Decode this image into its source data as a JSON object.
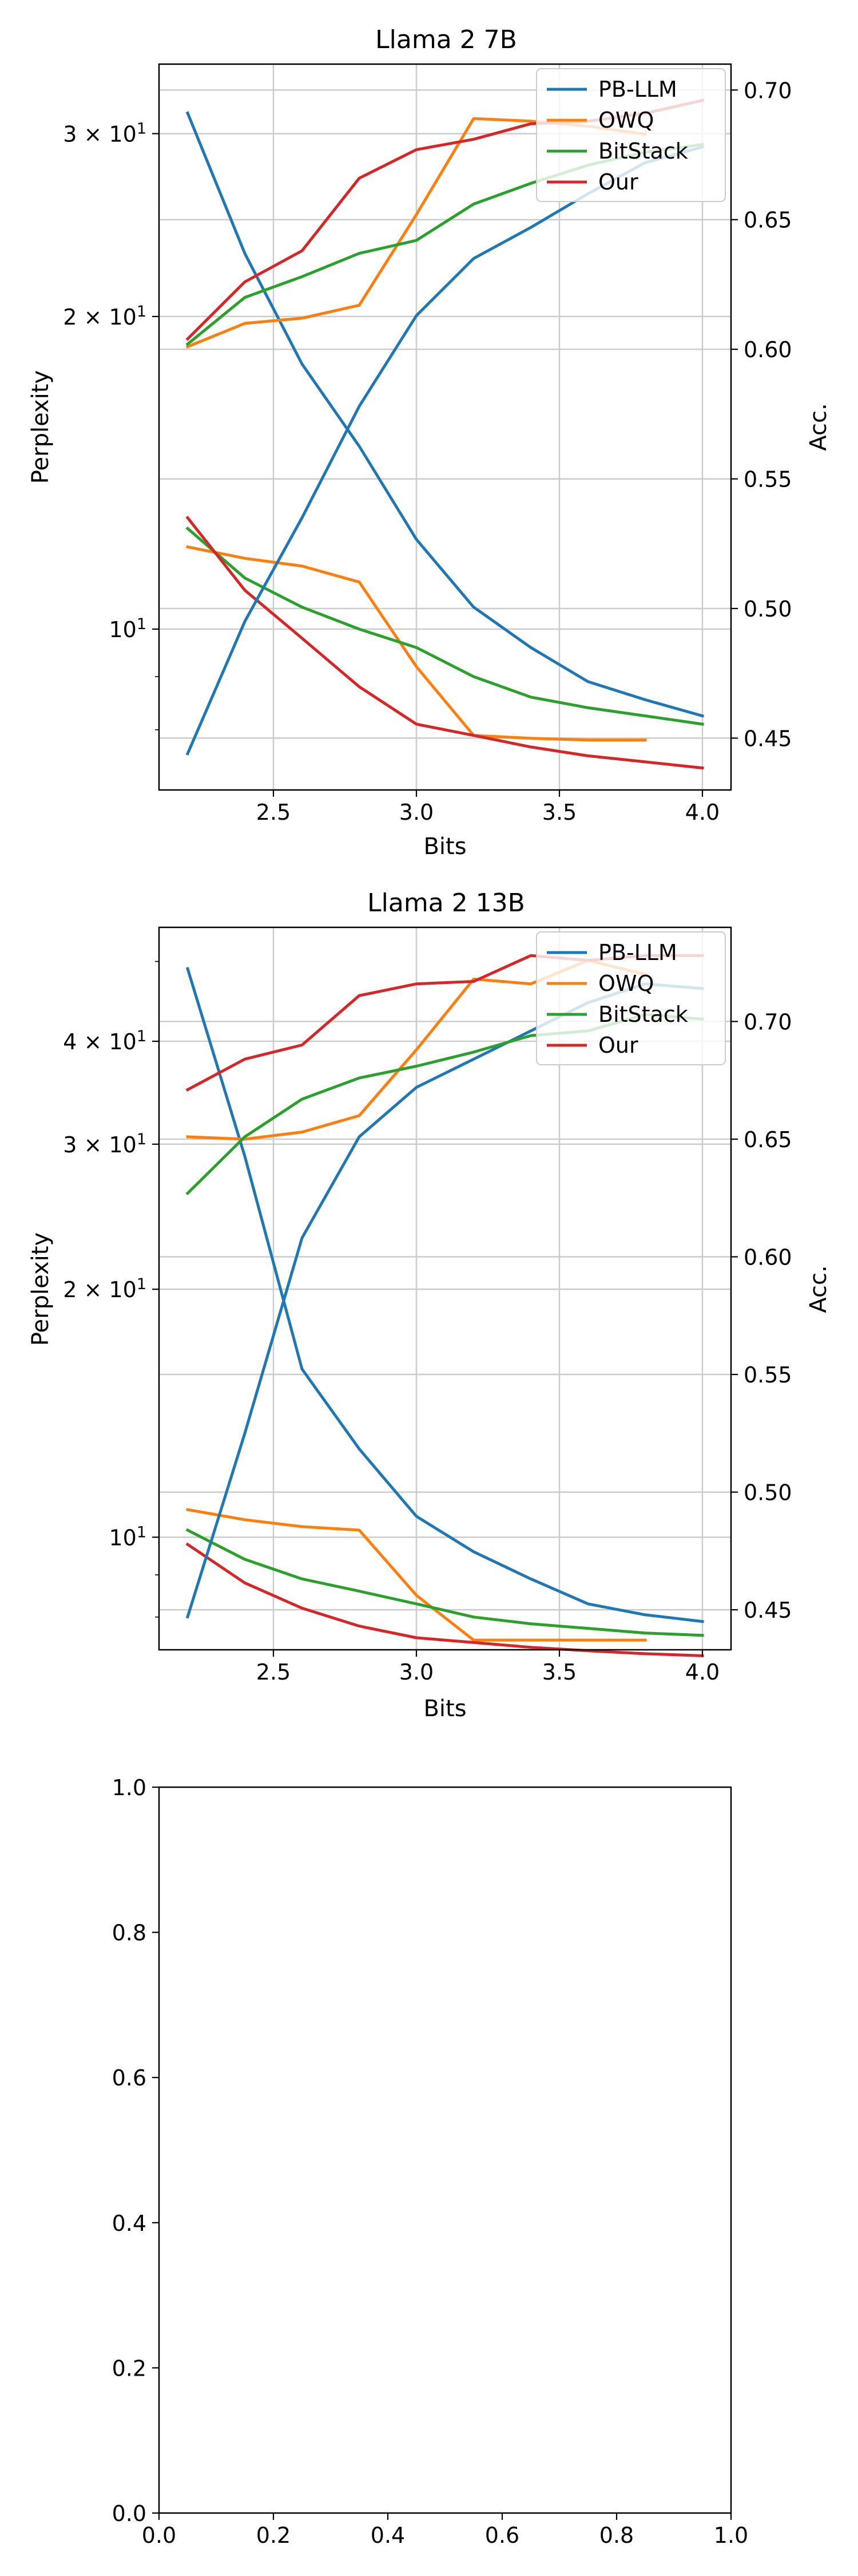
{
  "colors": {
    "PB-LLM": "#1f77b4",
    "OWQ": "#ff7f0e",
    "BitStack": "#2ca02c",
    "Our": "#d62728",
    "grid": "#cccccc",
    "axis": "#000000"
  },
  "chart_data": [
    {
      "type": "line",
      "title": "Llama 2 7B",
      "xlabel": "Bits",
      "ylabel": "Perplexity",
      "y2label": "Acc.",
      "yscale": "log",
      "xlim": [
        2.1,
        4.1
      ],
      "ylim": [
        7.0,
        35.0
      ],
      "y2lim": [
        0.43,
        0.71
      ],
      "xticks": [
        2.5,
        3.0,
        3.5,
        4.0
      ],
      "xtick_labels": [
        "2.5",
        "3.0",
        "3.5",
        "4.0"
      ],
      "yticks": [
        10,
        20,
        30
      ],
      "ytick_labels": [
        "10^1",
        "2 × 10^1",
        "3 × 10^1"
      ],
      "y2ticks": [
        0.45,
        0.5,
        0.55,
        0.6,
        0.65,
        0.7
      ],
      "y2tick_labels": [
        "0.45",
        "0.50",
        "0.55",
        "0.60",
        "0.65",
        "0.70"
      ],
      "grid": true,
      "legend_position": "top-right",
      "legend": [
        "PB-LLM",
        "OWQ",
        "BitStack",
        "Our"
      ],
      "x": [
        2.2,
        2.4,
        2.6,
        2.8,
        3.0,
        3.2,
        3.4,
        3.6,
        3.8,
        4.0
      ],
      "perplexity_series": [
        {
          "name": "PB-LLM",
          "values": [
            31.4,
            23.0,
            18.0,
            15.0,
            12.2,
            10.5,
            9.6,
            8.9,
            8.55,
            8.25
          ]
        },
        {
          "name": "OWQ",
          "values": [
            12.0,
            11.7,
            11.5,
            11.1,
            9.2,
            7.9,
            7.85,
            7.82,
            7.82,
            null
          ]
        },
        {
          "name": "BitStack",
          "values": [
            12.5,
            11.2,
            10.5,
            10.0,
            9.6,
            9.0,
            8.6,
            8.4,
            8.25,
            8.1
          ]
        },
        {
          "name": "Our",
          "values": [
            12.8,
            10.9,
            9.8,
            8.8,
            8.1,
            7.9,
            7.7,
            7.55,
            7.45,
            7.35
          ]
        }
      ],
      "accuracy_series": [
        {
          "name": "PB-LLM",
          "values": [
            0.444,
            0.495,
            0.535,
            0.578,
            0.613,
            0.635,
            0.647,
            0.66,
            0.672,
            0.678
          ]
        },
        {
          "name": "OWQ",
          "values": [
            0.601,
            0.61,
            0.612,
            0.617,
            0.652,
            0.689,
            0.688,
            0.686,
            0.683,
            null
          ]
        },
        {
          "name": "BitStack",
          "values": [
            0.602,
            0.62,
            0.628,
            0.637,
            0.642,
            0.656,
            0.664,
            0.671,
            0.676,
            0.679
          ]
        },
        {
          "name": "Our",
          "values": [
            0.604,
            0.626,
            0.638,
            0.666,
            0.677,
            0.681,
            0.687,
            0.688,
            0.691,
            0.696
          ]
        }
      ]
    },
    {
      "type": "line",
      "title": "Llama 2 13B",
      "xlabel": "Bits",
      "ylabel": "Perplexity",
      "y2label": "Acc.",
      "yscale": "log",
      "xlim": [
        2.1,
        4.1
      ],
      "ylim": [
        7.3,
        55.0
      ],
      "y2lim": [
        0.433,
        0.74
      ],
      "xticks": [
        2.5,
        3.0,
        3.5,
        4.0
      ],
      "xtick_labels": [
        "2.5",
        "3.0",
        "3.5",
        "4.0"
      ],
      "yticks": [
        10,
        20,
        30,
        40
      ],
      "ytick_labels": [
        "10^1",
        "2 × 10^1",
        "3 × 10^1",
        "4 × 10^1"
      ],
      "y2ticks": [
        0.45,
        0.5,
        0.55,
        0.6,
        0.65,
        0.7
      ],
      "y2tick_labels": [
        "0.45",
        "0.50",
        "0.55",
        "0.60",
        "0.65",
        "0.70"
      ],
      "grid": true,
      "legend_position": "top-right",
      "legend": [
        "PB-LLM",
        "OWQ",
        "BitStack",
        "Our"
      ],
      "x": [
        2.2,
        2.4,
        2.6,
        2.8,
        3.0,
        3.2,
        3.4,
        3.6,
        3.8,
        4.0
      ],
      "perplexity_series": [
        {
          "name": "PB-LLM",
          "values": [
            49.0,
            29.0,
            16.0,
            12.8,
            10.6,
            9.6,
            8.9,
            8.3,
            8.05,
            7.9
          ]
        },
        {
          "name": "OWQ",
          "values": [
            10.8,
            10.5,
            10.3,
            10.2,
            8.5,
            7.5,
            7.5,
            7.5,
            7.5,
            null
          ]
        },
        {
          "name": "BitStack",
          "values": [
            10.2,
            9.4,
            8.9,
            8.6,
            8.3,
            8.0,
            7.85,
            7.75,
            7.65,
            7.6
          ]
        },
        {
          "name": "Our",
          "values": [
            9.8,
            8.8,
            8.2,
            7.8,
            7.55,
            7.45,
            7.35,
            7.28,
            7.22,
            7.18
          ]
        }
      ],
      "accuracy_series": [
        {
          "name": "PB-LLM",
          "values": [
            0.447,
            0.525,
            0.608,
            0.651,
            0.672,
            0.684,
            0.696,
            0.708,
            0.716,
            0.714
          ]
        },
        {
          "name": "OWQ",
          "values": [
            0.651,
            0.65,
            0.653,
            0.66,
            0.688,
            0.718,
            0.716,
            0.726,
            0.72,
            null
          ]
        },
        {
          "name": "BitStack",
          "values": [
            0.627,
            0.651,
            0.667,
            0.676,
            0.681,
            0.687,
            0.694,
            0.696,
            0.703,
            0.701
          ]
        },
        {
          "name": "Our",
          "values": [
            0.671,
            0.684,
            0.69,
            0.711,
            0.716,
            0.717,
            0.728,
            0.726,
            0.728,
            0.728
          ]
        }
      ]
    },
    {
      "type": "line",
      "title": "",
      "xlabel": "",
      "ylabel": "",
      "xlim": [
        0.0,
        1.0
      ],
      "ylim": [
        0.0,
        1.0
      ],
      "xticks": [
        0.0,
        0.2,
        0.4,
        0.6,
        0.8,
        1.0
      ],
      "xtick_labels": [
        "0.0",
        "0.2",
        "0.4",
        "0.6",
        "0.8",
        "1.0"
      ],
      "yticks": [
        0.0,
        0.2,
        0.4,
        0.6,
        0.8,
        1.0
      ],
      "ytick_labels": [
        "0.0",
        "0.2",
        "0.4",
        "0.6",
        "0.8",
        "1.0"
      ],
      "grid": false,
      "empty": true
    }
  ]
}
